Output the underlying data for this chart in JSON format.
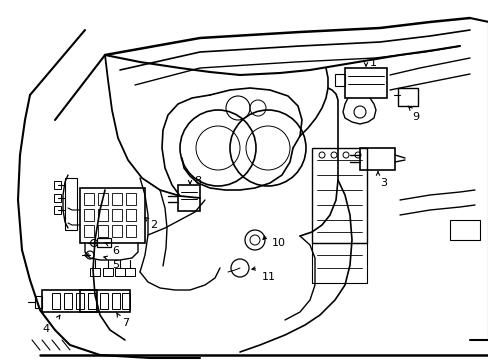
{
  "background_color": "#ffffff",
  "line_color": "#000000",
  "figure_width": 4.89,
  "figure_height": 3.6,
  "dpi": 100,
  "border_padding": 0.08
}
